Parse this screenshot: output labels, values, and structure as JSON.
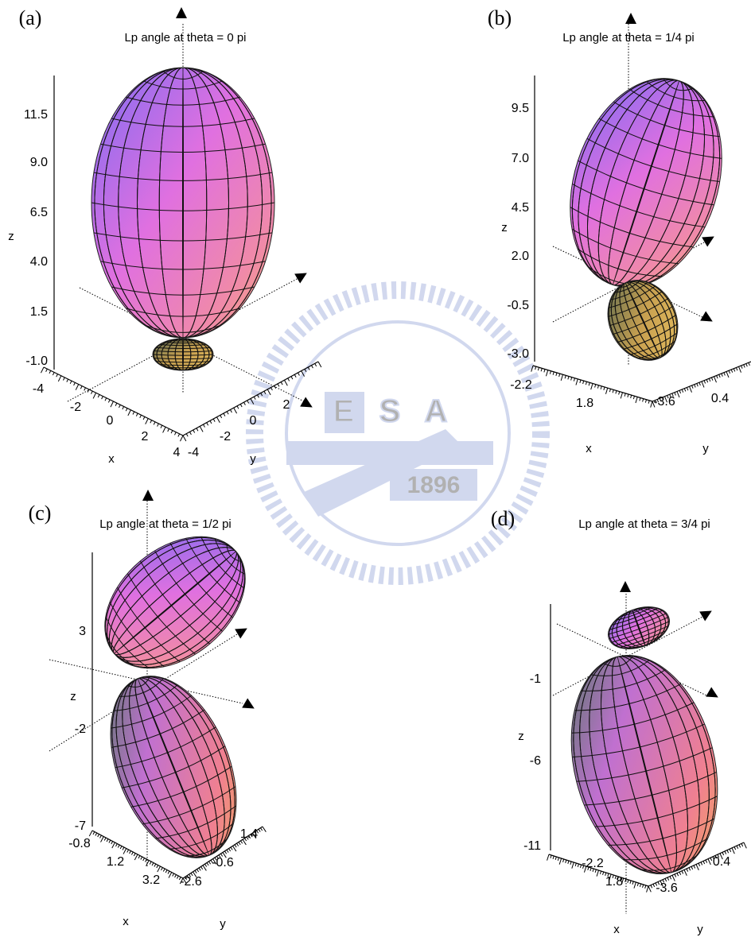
{
  "panels": [
    {
      "label": "(a)",
      "title": "Lp angle at theta = 0 pi",
      "z_label": "z",
      "x_label": "x",
      "y_label": "y",
      "z_ticks": [
        "11.5",
        "9.0",
        "6.5",
        "4.0",
        "1.5",
        "-1.0"
      ],
      "x_ticks": [
        "-4",
        "-2",
        "0",
        "2",
        "4"
      ],
      "y_ticks": [
        "-4",
        "-2",
        "0",
        "2"
      ]
    },
    {
      "label": "(b)",
      "title": "Lp angle at theta = 1/4 pi",
      "z_label": "z",
      "x_label": "x",
      "y_label": "y",
      "z_ticks": [
        "9.5",
        "7.0",
        "4.5",
        "2.0",
        "-0.5",
        "-3.0"
      ],
      "x_ticks": [
        "-2.2",
        "1.8"
      ],
      "y_ticks": [
        "-3.6",
        "0.4"
      ]
    },
    {
      "label": "(c)",
      "title": "Lp angle at theta = 1/2 pi",
      "z_label": "z",
      "x_label": "x",
      "y_label": "y",
      "z_ticks": [
        "3",
        "-2",
        "-7"
      ],
      "x_ticks": [
        "-0.8",
        "1.2",
        "3.2"
      ],
      "y_ticks": [
        "-2.6",
        "-0.6",
        "1.4"
      ]
    },
    {
      "label": "(d)",
      "title": "Lp angle at theta = 3/4 pi",
      "z_label": "z",
      "x_label": "x",
      "y_label": "y",
      "z_ticks": [
        "-1",
        "-6",
        "-11"
      ],
      "x_ticks": [
        "-2.2",
        "1.8"
      ],
      "y_ticks": [
        "-3.6",
        "0.4"
      ]
    }
  ],
  "watermark": {
    "letters": [
      "E",
      "S",
      "A"
    ],
    "year": "1896"
  }
}
